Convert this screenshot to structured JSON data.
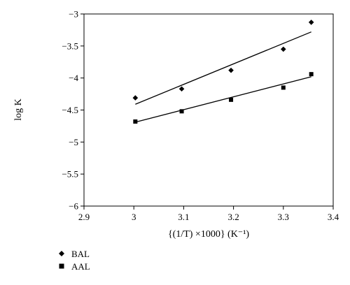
{
  "chart_data": {
    "type": "scatter",
    "xlabel": "{(1/T) ×1000} (K⁻¹)",
    "ylabel": "log K",
    "xlim": [
      2.9,
      3.4
    ],
    "ylim": [
      -6,
      -3
    ],
    "xticks": [
      2.9,
      3,
      3.1,
      3.2,
      3.3,
      3.4
    ],
    "xtick_labels": [
      "2.9",
      "3",
      "3.1",
      "3.2",
      "3.3",
      "3.4"
    ],
    "yticks": [
      -6,
      -5.5,
      -5,
      -4.5,
      -4,
      -3.5,
      -3
    ],
    "ytick_labels": [
      "−6",
      "−5.5",
      "−5",
      "−4.5",
      "−4",
      "−3.5",
      "−3"
    ],
    "grid": false,
    "legend_position": "bottom-left",
    "series": [
      {
        "name": "BAL",
        "marker": "diamond",
        "x": [
          3.003,
          3.096,
          3.195,
          3.3,
          3.356
        ],
        "y": [
          -4.31,
          -4.17,
          -3.88,
          -3.55,
          -3.13
        ],
        "trendline": {
          "x": [
            3.003,
            3.356
          ],
          "y": [
            -4.41,
            -3.28
          ]
        }
      },
      {
        "name": "AAL",
        "marker": "square",
        "x": [
          3.003,
          3.096,
          3.195,
          3.3,
          3.356
        ],
        "y": [
          -4.68,
          -4.52,
          -4.34,
          -4.15,
          -3.94
        ],
        "trendline": {
          "x": [
            3.003,
            3.356
          ],
          "y": [
            -4.69,
            -3.98
          ]
        }
      }
    ]
  }
}
